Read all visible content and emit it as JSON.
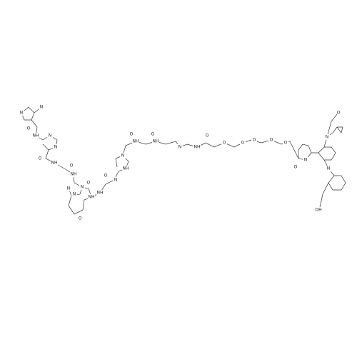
{
  "labels": [
    "N",
    "N",
    "O",
    "NH",
    "N",
    "N",
    "O",
    "NH",
    "O",
    "NH",
    "N",
    "N",
    "O",
    "NH",
    "N",
    "N",
    "NH",
    "O",
    "O",
    "NH",
    "N",
    "O",
    "NH",
    "O",
    "NH",
    "N",
    "NH",
    "O",
    "O",
    "O",
    "O",
    "O",
    "O",
    "N",
    "O",
    "N",
    "O",
    "N",
    "OH"
  ]
}
